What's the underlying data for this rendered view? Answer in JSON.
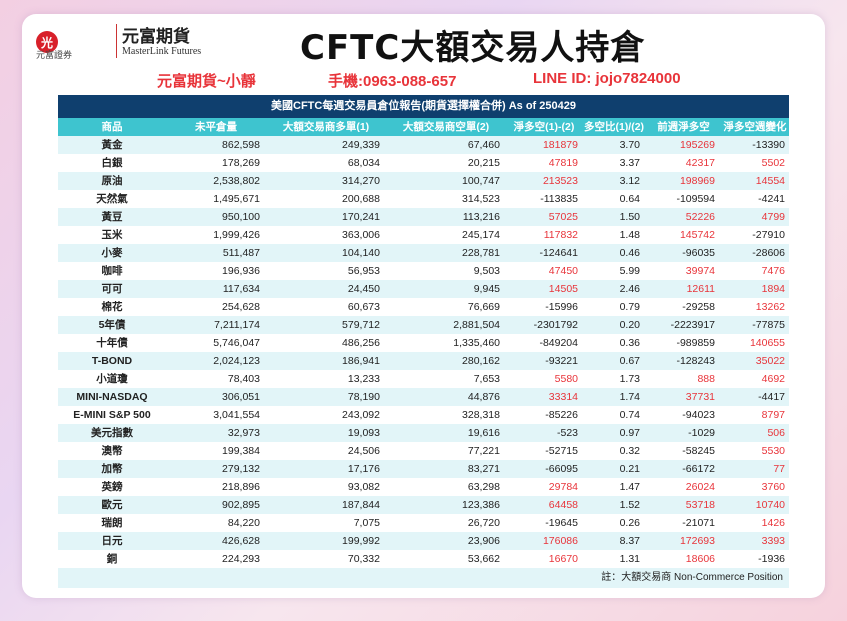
{
  "logo": {
    "mark": "光",
    "cn_small": "元富證券",
    "cn": "元富期貨",
    "en": "MasterLink Futures"
  },
  "header": {
    "title": "CFTC大額交易人持倉",
    "contact_name": "元富期貨~小靜",
    "contact_phone": "手機:0963-088-657",
    "contact_line": "LINE ID: jojo7824000"
  },
  "table": {
    "title": "美國CFTC每週交易員倉位報告(期貨選擇權合併) As of  250429",
    "columns": [
      "商品",
      "未平倉量",
      "大額交易商多單(1)",
      "大額交易商空單(2)",
      "淨多空(1)-(2)",
      "多空比(1)/(2)",
      "前週淨多空",
      "淨多空週變化"
    ],
    "rows": [
      [
        "黃金",
        "862,598",
        "249,339",
        "67,460",
        "181879",
        "3.70",
        "195269",
        "-13390"
      ],
      [
        "白銀",
        "178,269",
        "68,034",
        "20,215",
        "47819",
        "3.37",
        "42317",
        "5502"
      ],
      [
        "原油",
        "2,538,802",
        "314,270",
        "100,747",
        "213523",
        "3.12",
        "198969",
        "14554"
      ],
      [
        "天然氣",
        "1,495,671",
        "200,688",
        "314,523",
        "-113835",
        "0.64",
        "-109594",
        "-4241"
      ],
      [
        "黃豆",
        "950,100",
        "170,241",
        "113,216",
        "57025",
        "1.50",
        "52226",
        "4799"
      ],
      [
        "玉米",
        "1,999,426",
        "363,006",
        "245,174",
        "117832",
        "1.48",
        "145742",
        "-27910"
      ],
      [
        "小麥",
        "511,487",
        "104,140",
        "228,781",
        "-124641",
        "0.46",
        "-96035",
        "-28606"
      ],
      [
        "咖啡",
        "196,936",
        "56,953",
        "9,503",
        "47450",
        "5.99",
        "39974",
        "7476"
      ],
      [
        "可可",
        "117,634",
        "24,450",
        "9,945",
        "14505",
        "2.46",
        "12611",
        "1894"
      ],
      [
        "棉花",
        "254,628",
        "60,673",
        "76,669",
        "-15996",
        "0.79",
        "-29258",
        "13262"
      ],
      [
        "5年債",
        "7,211,174",
        "579,712",
        "2,881,504",
        "-2301792",
        "0.20",
        "-2223917",
        "-77875"
      ],
      [
        "十年債",
        "5,746,047",
        "486,256",
        "1,335,460",
        "-849204",
        "0.36",
        "-989859",
        "140655"
      ],
      [
        "T-BOND",
        "2,024,123",
        "186,941",
        "280,162",
        "-93221",
        "0.67",
        "-128243",
        "35022"
      ],
      [
        "小道瓊",
        "78,403",
        "13,233",
        "7,653",
        "5580",
        "1.73",
        "888",
        "4692"
      ],
      [
        "MINI-NASDAQ",
        "306,051",
        "78,190",
        "44,876",
        "33314",
        "1.74",
        "37731",
        "-4417"
      ],
      [
        "E-MINI S&P 500",
        "3,041,554",
        "243,092",
        "328,318",
        "-85226",
        "0.74",
        "-94023",
        "8797"
      ],
      [
        "美元指數",
        "32,973",
        "19,093",
        "19,616",
        "-523",
        "0.97",
        "-1029",
        "506"
      ],
      [
        "澳幣",
        "199,384",
        "24,506",
        "77,221",
        "-52715",
        "0.32",
        "-58245",
        "5530"
      ],
      [
        "加幣",
        "279,132",
        "17,176",
        "83,271",
        "-66095",
        "0.21",
        "-66172",
        "77"
      ],
      [
        "英鎊",
        "218,896",
        "93,082",
        "63,298",
        "29784",
        "1.47",
        "26024",
        "3760"
      ],
      [
        "歐元",
        "902,895",
        "187,844",
        "123,386",
        "64458",
        "1.52",
        "53718",
        "10740"
      ],
      [
        "瑞朗",
        "84,220",
        "7,075",
        "26,720",
        "-19645",
        "0.26",
        "-21071",
        "1426"
      ],
      [
        "日元",
        "426,628",
        "199,992",
        "23,906",
        "176086",
        "8.37",
        "172693",
        "3393"
      ],
      [
        "銅",
        "224,293",
        "70,332",
        "53,662",
        "16670",
        "1.31",
        "18606",
        "-1936"
      ]
    ],
    "footnote": "註：大額交易商 Non-Commerce Position"
  },
  "colors": {
    "header_navy": "#0f3f6e",
    "header_teal": "#3ec4cf",
    "row_stripe": "#e2f5f8",
    "positive_red": "#e8343a",
    "negative_black": "#222222"
  }
}
